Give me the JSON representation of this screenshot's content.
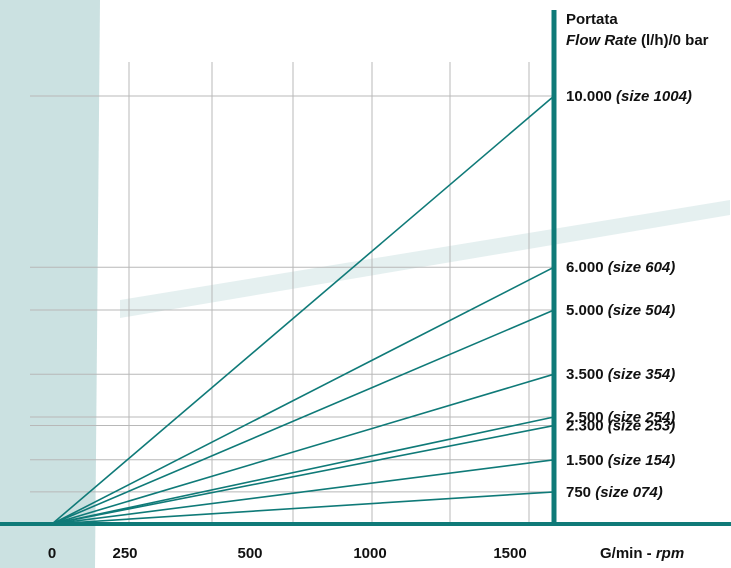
{
  "chart_data": {
    "type": "line",
    "title_line1": "Portata",
    "title_italic": "Flow Rate",
    "title_rest": " (l/h)/0 bar",
    "xlabel_main": "G/min - ",
    "xlabel_italic": "rpm",
    "x_ticks": [
      "0",
      "250",
      "500",
      "1000",
      "1500"
    ],
    "x_ref_label_positions": [
      0,
      250,
      500,
      1000,
      1500
    ],
    "x_max": 1650,
    "series": [
      {
        "name": "10.000",
        "size": "(size 1004)",
        "x": [
          0,
          1650
        ],
        "y": [
          0,
          10000
        ]
      },
      {
        "name": "6.000",
        "size": "(size 604)",
        "x": [
          0,
          1650
        ],
        "y": [
          0,
          6000
        ]
      },
      {
        "name": "5.000",
        "size": "(size 504)",
        "x": [
          0,
          1650
        ],
        "y": [
          0,
          5000
        ]
      },
      {
        "name": "3.500",
        "size": "(size 354)",
        "x": [
          0,
          1650
        ],
        "y": [
          0,
          3500
        ]
      },
      {
        "name": "2.500",
        "size": "(size 254)",
        "x": [
          0,
          1650
        ],
        "y": [
          0,
          2500
        ]
      },
      {
        "name": "2.300",
        "size": "(size 253)",
        "x": [
          0,
          1650
        ],
        "y": [
          0,
          2300
        ]
      },
      {
        "name": "1.500",
        "size": "(size 154)",
        "x": [
          0,
          1650
        ],
        "y": [
          0,
          1500
        ]
      },
      {
        "name": "750",
        "size": "(size 074)",
        "x": [
          0,
          1650
        ],
        "y": [
          0,
          750
        ]
      }
    ],
    "grid": true,
    "colors": {
      "line": "#0f7a78",
      "axis": "#0f7a78",
      "grid": "#b8b8b8",
      "texture": "#c5dede"
    }
  }
}
